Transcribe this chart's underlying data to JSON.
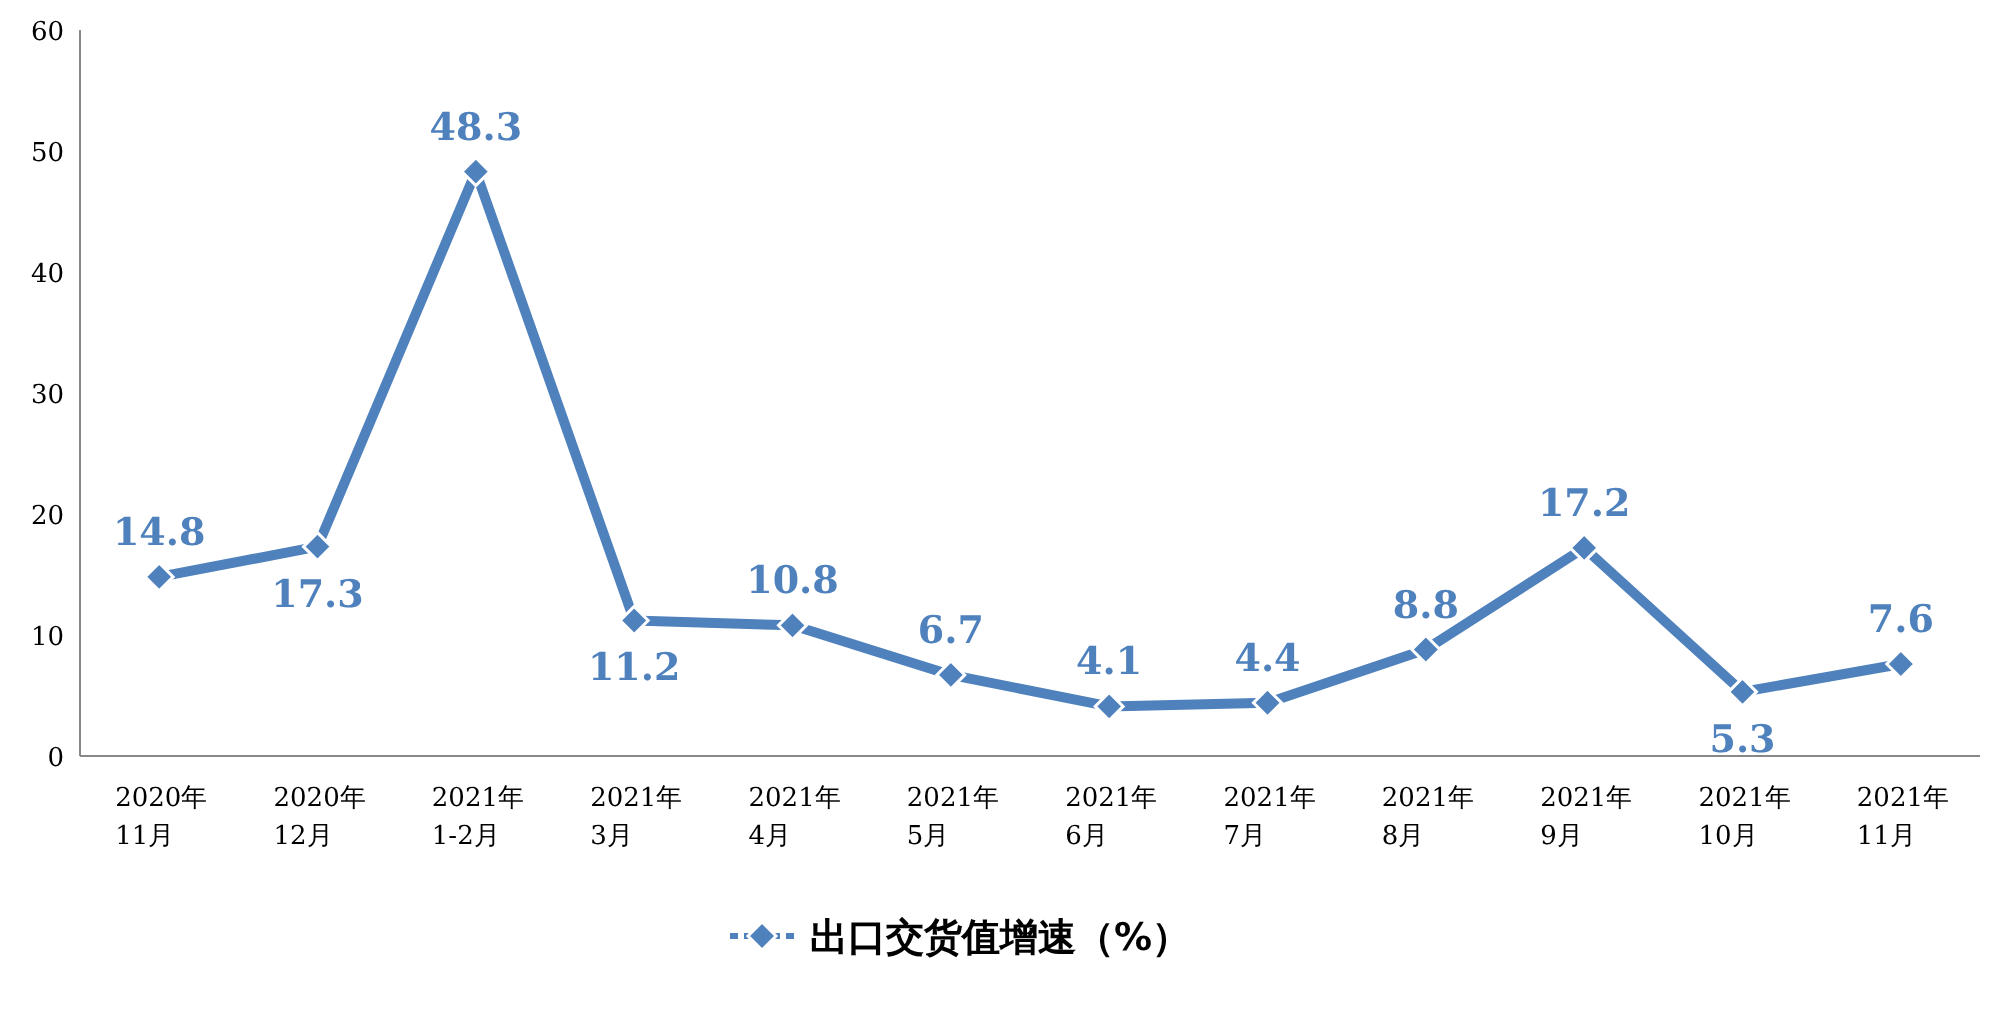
{
  "chart_data": {
    "type": "line",
    "categories": [
      "2020年\n11月",
      "2020年\n12月",
      "2021年\n1-2月",
      "2021年\n3月",
      "2021年\n4月",
      "2021年\n5月",
      "2021年\n6月",
      "2021年\n7月",
      "2021年\n8月",
      "2021年\n9月",
      "2021年\n10月",
      "2021年\n11月"
    ],
    "series": [
      {
        "name": "出口交货值增速（%）",
        "color": "#4f81bd",
        "values": [
          14.8,
          17.3,
          48.3,
          11.2,
          10.8,
          6.7,
          4.1,
          4.4,
          8.8,
          17.2,
          5.3,
          7.6
        ]
      }
    ],
    "ylim": [
      0,
      60
    ],
    "yticks": [
      0,
      10,
      20,
      30,
      40,
      50,
      60
    ],
    "data_labels": true,
    "marker": "diamond",
    "legend": "bottom",
    "grid": false
  }
}
